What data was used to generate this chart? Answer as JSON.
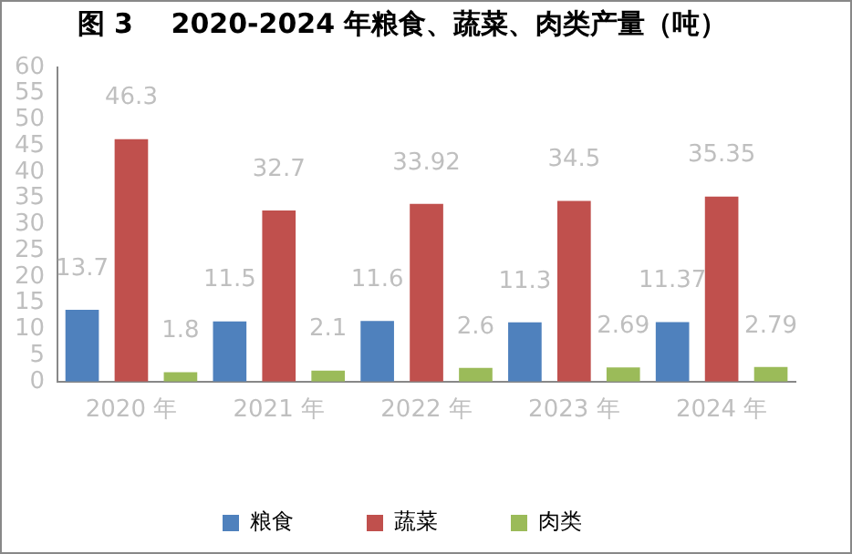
{
  "chart_data": {
    "type": "bar",
    "title": "图 3    2020-2024 年粮食、蔬菜、肉类产量（吨）",
    "categories": [
      "2020 年",
      "2021 年",
      "2022 年",
      "2023 年",
      "2024 年"
    ],
    "series": [
      {
        "name": "粮食",
        "color": "#4f81bd",
        "values": [
          13.7,
          11.5,
          11.6,
          11.3,
          11.37
        ]
      },
      {
        "name": "蔬菜",
        "color": "#c0504d",
        "values": [
          46.3,
          32.7,
          33.92,
          34.5,
          35.35
        ]
      },
      {
        "name": "肉类",
        "color": "#9bbb59",
        "values": [
          1.8,
          2.1,
          2.6,
          2.69,
          2.79
        ]
      }
    ],
    "ylim": [
      0,
      60
    ],
    "yticks": [
      0,
      5,
      10,
      15,
      20,
      25,
      30,
      35,
      40,
      45,
      50,
      55,
      60
    ],
    "grid": false,
    "legend": "bottom",
    "data_labels": true
  }
}
